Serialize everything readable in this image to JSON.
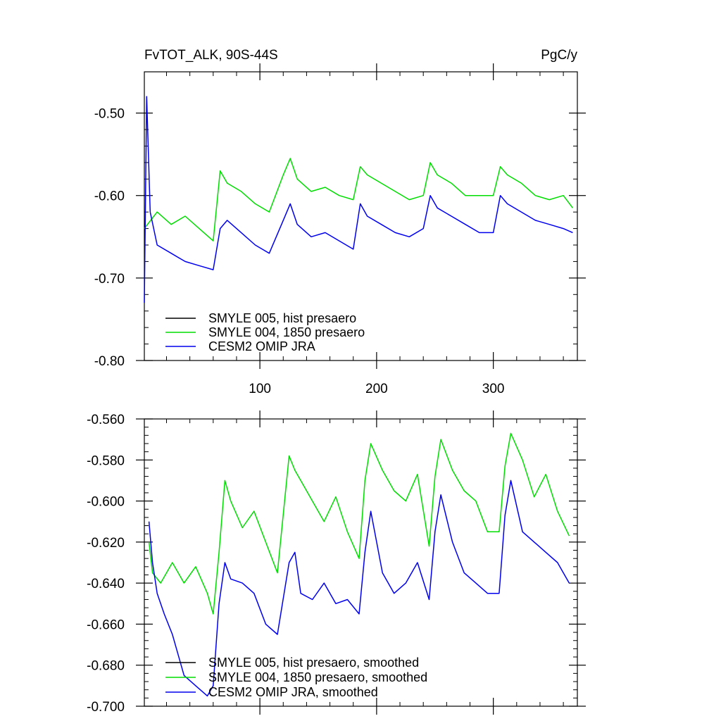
{
  "chart_data": [
    {
      "type": "line",
      "title_left": "FvTOT_ALK, 90S-44S",
      "title_right": "PgC/y",
      "xlim": [
        1,
        372
      ],
      "ylim": [
        -0.8,
        -0.45
      ],
      "yticks": [
        -0.5,
        -0.6,
        -0.7,
        -0.8
      ],
      "ytick_labels": [
        "-0.50",
        "-0.60",
        "-0.70",
        "-0.80"
      ],
      "xticks": [
        100,
        200,
        300
      ],
      "xtick_labels": [
        "100",
        "200",
        "300"
      ],
      "legend_position": "bottom-left",
      "series": [
        {
          "name": "SMYLE 005, hist presaero",
          "color": "#000000",
          "x": [],
          "y": []
        },
        {
          "name": "SMYLE 004, 1850 presaero",
          "color": "#00dd00",
          "x": [
            1,
            12,
            24,
            36,
            48,
            60,
            66,
            72,
            84,
            96,
            108,
            120,
            126,
            132,
            144,
            156,
            168,
            180,
            186,
            192,
            204,
            216,
            228,
            240,
            246,
            252,
            264,
            276,
            288,
            300,
            306,
            312,
            324,
            336,
            348,
            360,
            368
          ],
          "y": [
            -0.64,
            -0.62,
            -0.635,
            -0.625,
            -0.64,
            -0.655,
            -0.57,
            -0.585,
            -0.595,
            -0.61,
            -0.62,
            -0.575,
            -0.555,
            -0.58,
            -0.595,
            -0.59,
            -0.6,
            -0.605,
            -0.565,
            -0.575,
            -0.585,
            -0.595,
            -0.605,
            -0.6,
            -0.56,
            -0.575,
            -0.585,
            -0.6,
            -0.6,
            -0.6,
            -0.565,
            -0.575,
            -0.585,
            -0.6,
            -0.605,
            -0.6,
            -0.615
          ]
        },
        {
          "name": "CESM2 OMIP JRA",
          "color": "#0000ee",
          "x": [
            1,
            3,
            6,
            12,
            24,
            36,
            48,
            60,
            66,
            72,
            84,
            96,
            108,
            120,
            126,
            132,
            144,
            156,
            168,
            180,
            186,
            192,
            204,
            216,
            228,
            240,
            246,
            252,
            264,
            276,
            288,
            300,
            306,
            312,
            324,
            336,
            348,
            360,
            368
          ],
          "y": [
            -0.73,
            -0.48,
            -0.62,
            -0.66,
            -0.67,
            -0.68,
            -0.685,
            -0.69,
            -0.64,
            -0.63,
            -0.645,
            -0.66,
            -0.67,
            -0.63,
            -0.61,
            -0.635,
            -0.65,
            -0.645,
            -0.655,
            -0.665,
            -0.61,
            -0.625,
            -0.635,
            -0.645,
            -0.65,
            -0.64,
            -0.6,
            -0.615,
            -0.625,
            -0.635,
            -0.645,
            -0.645,
            -0.6,
            -0.61,
            -0.62,
            -0.63,
            -0.635,
            -0.64,
            -0.645
          ]
        }
      ]
    },
    {
      "type": "line",
      "xlim": [
        1,
        372
      ],
      "ylim": [
        -0.7,
        -0.56
      ],
      "yticks": [
        -0.56,
        -0.58,
        -0.6,
        -0.62,
        -0.64,
        -0.66,
        -0.68,
        -0.7
      ],
      "ytick_labels": [
        "-0.560",
        "-0.580",
        "-0.600",
        "-0.620",
        "-0.640",
        "-0.660",
        "-0.680",
        "-0.700"
      ],
      "xticks": [
        100,
        200,
        300
      ],
      "legend_position": "bottom-left",
      "series": [
        {
          "name": "SMYLE 005, hist presaero, smoothed",
          "color": "#000000",
          "x": [],
          "y": []
        },
        {
          "name": "SMYLE 004, 1850 presaero, smoothed",
          "color": "#00dd00",
          "x": [
            5,
            8,
            15,
            25,
            35,
            45,
            55,
            60,
            65,
            70,
            75,
            85,
            95,
            105,
            115,
            125,
            130,
            135,
            145,
            155,
            165,
            175,
            185,
            190,
            195,
            205,
            215,
            225,
            235,
            245,
            250,
            255,
            265,
            275,
            285,
            295,
            305,
            310,
            315,
            325,
            335,
            345,
            355,
            365
          ],
          "y": [
            -0.62,
            -0.635,
            -0.64,
            -0.63,
            -0.64,
            -0.632,
            -0.645,
            -0.655,
            -0.625,
            -0.59,
            -0.6,
            -0.613,
            -0.605,
            -0.62,
            -0.635,
            -0.578,
            -0.585,
            -0.59,
            -0.6,
            -0.61,
            -0.598,
            -0.615,
            -0.628,
            -0.59,
            -0.572,
            -0.585,
            -0.595,
            -0.6,
            -0.587,
            -0.622,
            -0.588,
            -0.57,
            -0.585,
            -0.595,
            -0.6,
            -0.615,
            -0.615,
            -0.583,
            -0.567,
            -0.58,
            -0.598,
            -0.587,
            -0.605,
            -0.617
          ]
        },
        {
          "name": "CESM2 OMIP JRA, smoothed",
          "color": "#0000ee",
          "x": [
            5,
            8,
            12,
            18,
            25,
            35,
            45,
            55,
            60,
            65,
            70,
            75,
            85,
            95,
            105,
            115,
            125,
            130,
            135,
            145,
            155,
            165,
            175,
            185,
            190,
            195,
            205,
            215,
            225,
            235,
            245,
            250,
            255,
            265,
            275,
            285,
            295,
            305,
            310,
            315,
            325,
            335,
            345,
            355,
            365
          ],
          "y": [
            -0.61,
            -0.63,
            -0.645,
            -0.655,
            -0.665,
            -0.685,
            -0.69,
            -0.695,
            -0.69,
            -0.65,
            -0.63,
            -0.638,
            -0.64,
            -0.645,
            -0.66,
            -0.665,
            -0.63,
            -0.625,
            -0.645,
            -0.648,
            -0.64,
            -0.65,
            -0.648,
            -0.655,
            -0.625,
            -0.605,
            -0.635,
            -0.645,
            -0.64,
            -0.63,
            -0.648,
            -0.615,
            -0.597,
            -0.62,
            -0.635,
            -0.64,
            -0.645,
            -0.645,
            -0.607,
            -0.59,
            -0.615,
            -0.62,
            -0.625,
            -0.63,
            -0.64
          ]
        }
      ]
    }
  ]
}
